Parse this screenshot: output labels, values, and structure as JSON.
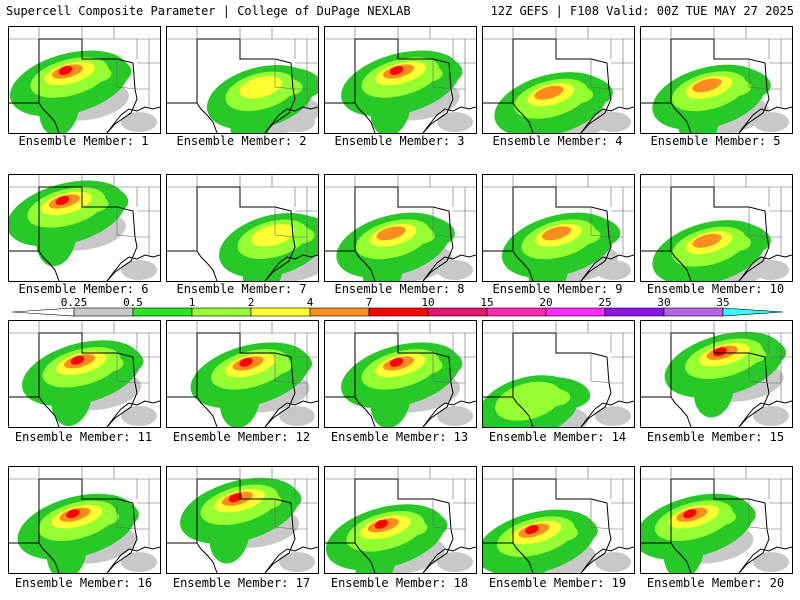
{
  "header": {
    "title_left": "Supercell Composite Parameter | College of DuPage NEXLAB",
    "title_right": "12Z GEFS | F108 Valid: 00Z TUE MAY 27 2025"
  },
  "panels": [
    {
      "label": "Ensemble Member: 1",
      "focus": [
        0.4,
        0.42
      ],
      "intensity": 3
    },
    {
      "label": "Ensemble Member: 2",
      "focus": [
        0.62,
        0.55
      ],
      "intensity": 1
    },
    {
      "label": "Ensemble Member: 3",
      "focus": [
        0.5,
        0.42
      ],
      "intensity": 3
    },
    {
      "label": "Ensemble Member: 4",
      "focus": [
        0.45,
        0.62
      ],
      "intensity": 2
    },
    {
      "label": "Ensemble Member: 5",
      "focus": [
        0.45,
        0.55
      ],
      "intensity": 2
    },
    {
      "label": "Ensemble Member: 6",
      "focus": [
        0.38,
        0.25
      ],
      "intensity": 3
    },
    {
      "label": "Ensemble Member: 7",
      "focus": [
        0.7,
        0.55
      ],
      "intensity": 1
    },
    {
      "label": "Ensemble Member: 8",
      "focus": [
        0.45,
        0.55
      ],
      "intensity": 2
    },
    {
      "label": "Ensemble Member: 9",
      "focus": [
        0.5,
        0.55
      ],
      "intensity": 2
    },
    {
      "label": "Ensemble Member: 10",
      "focus": [
        0.45,
        0.62
      ],
      "intensity": 2
    },
    {
      "label": "Ensemble Member: 11",
      "focus": [
        0.48,
        0.38
      ],
      "intensity": 3
    },
    {
      "label": "Ensemble Member: 12",
      "focus": [
        0.55,
        0.4
      ],
      "intensity": 3
    },
    {
      "label": "Ensemble Member: 13",
      "focus": [
        0.5,
        0.4
      ],
      "intensity": 3
    },
    {
      "label": "Ensemble Member: 14",
      "focus": [
        0.3,
        0.7
      ],
      "intensity": 0
    },
    {
      "label": "Ensemble Member: 15",
      "focus": [
        0.55,
        0.3
      ],
      "intensity": 3
    },
    {
      "label": "Ensemble Member: 16",
      "focus": [
        0.45,
        0.45
      ],
      "intensity": 3
    },
    {
      "label": "Ensemble Member: 17",
      "focus": [
        0.48,
        0.3
      ],
      "intensity": 3
    },
    {
      "label": "Ensemble Member: 18",
      "focus": [
        0.4,
        0.55
      ],
      "intensity": 3
    },
    {
      "label": "Ensemble Member: 19",
      "focus": [
        0.35,
        0.6
      ],
      "intensity": 3
    },
    {
      "label": "Ensemble Member: 20",
      "focus": [
        0.35,
        0.45
      ],
      "intensity": 3
    }
  ],
  "colorbar": {
    "labels": [
      "0.25",
      "0.5",
      "1",
      "2",
      "4",
      "7",
      "10",
      "15",
      "20",
      "25",
      "30",
      "35"
    ],
    "colors": [
      "#c8c8c8",
      "#28e628",
      "#96ff32",
      "#ffff32",
      "#ff8c1e",
      "#ff0000",
      "#e6146e",
      "#ff28b4",
      "#ff28ff",
      "#8c14e6",
      "#b464e6",
      "#32ffff"
    ]
  },
  "colors": {
    "gray": "#c8c8c8",
    "green": "#28c828",
    "light_green": "#96ff32",
    "yellow": "#ffff32",
    "orange": "#ff8c1e",
    "red": "#ff0000"
  }
}
